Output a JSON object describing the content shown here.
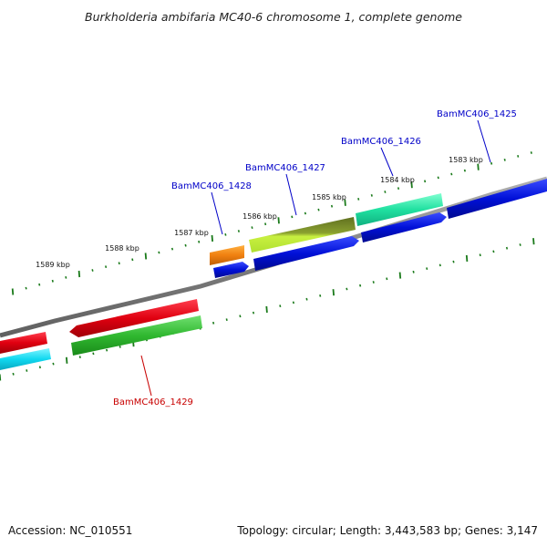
{
  "title": "Burkholderia ambifaria MC40-6 chromosome 1, complete genome",
  "footer": {
    "accession": "Accession: NC_010551",
    "summary": "Topology: circular; Length: 3,443,583 bp; Genes: 3,147"
  },
  "ruler_labels": [
    "1589 kbp",
    "1588 kbp",
    "1587 kbp",
    "1586 kbp",
    "1585 kbp",
    "1584 kbp",
    "1583 kbp"
  ],
  "gene_labels": [
    {
      "text": "BamMC406_1425",
      "color": "#0000c8"
    },
    {
      "text": "BamMC406_1426",
      "color": "#0000c8"
    },
    {
      "text": "BamMC406_1427",
      "color": "#0000c8"
    },
    {
      "text": "BamMC406_1428",
      "color": "#0000c8"
    },
    {
      "text": "BamMC406_1429",
      "color": "#c80000"
    }
  ],
  "colors": {
    "backbone": "#8a8a8a",
    "tick": "#1a7a1a",
    "blue": "#0018e0",
    "red": "#e00010",
    "green": "#30c030",
    "cyan": "#10d8f0",
    "orange": "#f08010",
    "teal": "#20e8a0",
    "olive_lime": "#a0d020"
  }
}
